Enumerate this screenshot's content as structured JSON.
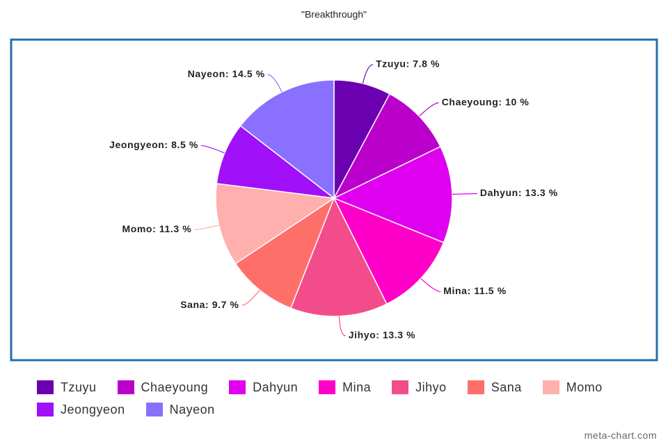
{
  "chart_data": {
    "type": "pie",
    "title": "\"Breakthrough\"",
    "categories": [
      "Tzuyu",
      "Chaeyoung",
      "Dahyun",
      "Mina",
      "Jihyo",
      "Sana",
      "Momo",
      "Jeongyeon",
      "Nayeon"
    ],
    "values": [
      7.8,
      10,
      13.3,
      11.5,
      13.3,
      9.7,
      11.3,
      8.5,
      14.5
    ],
    "value_labels": [
      "Tzuyu: 7.8 %",
      "Chaeyoung: 10 %",
      "Dahyun: 13.3 %",
      "Mina: 11.5 %",
      "Jihyo: 13.3 %",
      "Sana: 9.7 %",
      "Momo: 11.3 %",
      "Jeongyeon: 8.5 %",
      "Nayeon: 14.5 %"
    ],
    "colors": [
      "#6a00b0",
      "#bb00cc",
      "#de00ee",
      "#ff00c8",
      "#f24d8a",
      "#ff6f6a",
      "#ffb0ae",
      "#a010f8",
      "#8a70ff"
    ],
    "legend": "bottom",
    "watermark": "meta-chart.com"
  }
}
